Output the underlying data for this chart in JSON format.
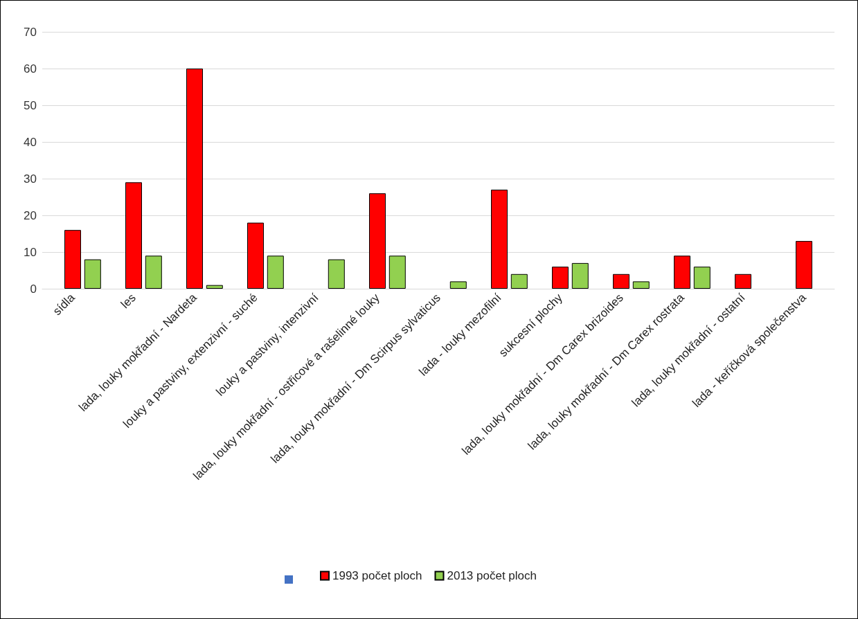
{
  "chart_data": {
    "type": "bar",
    "categories": [
      "sídla",
      "les",
      "lada, louky mokřadní - Nardeta",
      "louky a pastviny, extenzivní - suché",
      "louky a pastviny, intenzivní",
      "lada, louky mokřadní - ostřicové a rašelinné louky",
      "lada, louky mokřadní - Dm Scirpus sylvaticus",
      "lada - louky mezofilní",
      "sukcesní plochy",
      "lada, louky mokřadní - Dm Carex brizoides",
      "lada, louky mokřadní - Dm Carex rostrata",
      "lada, louky mokřadní - ostatní",
      "lada - keříčková společenstva"
    ],
    "series": [
      {
        "color": "#4472c4",
        "values": [
          null,
          null,
          null,
          null,
          null,
          null,
          null,
          null,
          null,
          null,
          null,
          null,
          null
        ]
      },
      {
        "name": "1993 počet ploch",
        "color": "#ff0000",
        "values": [
          16,
          29,
          60,
          18,
          null,
          26,
          null,
          27,
          6,
          4,
          9,
          4,
          13
        ]
      },
      {
        "name": "2013 počet ploch",
        "color": "#92d050",
        "values": [
          8,
          9,
          1,
          9,
          8,
          9,
          2,
          4,
          7,
          2,
          6,
          null,
          null
        ]
      }
    ],
    "ylim": [
      0,
      70
    ],
    "yticks": [
      0,
      10,
      20,
      30,
      40,
      50,
      60,
      70
    ],
    "grid": "y",
    "legend": "bottom"
  }
}
